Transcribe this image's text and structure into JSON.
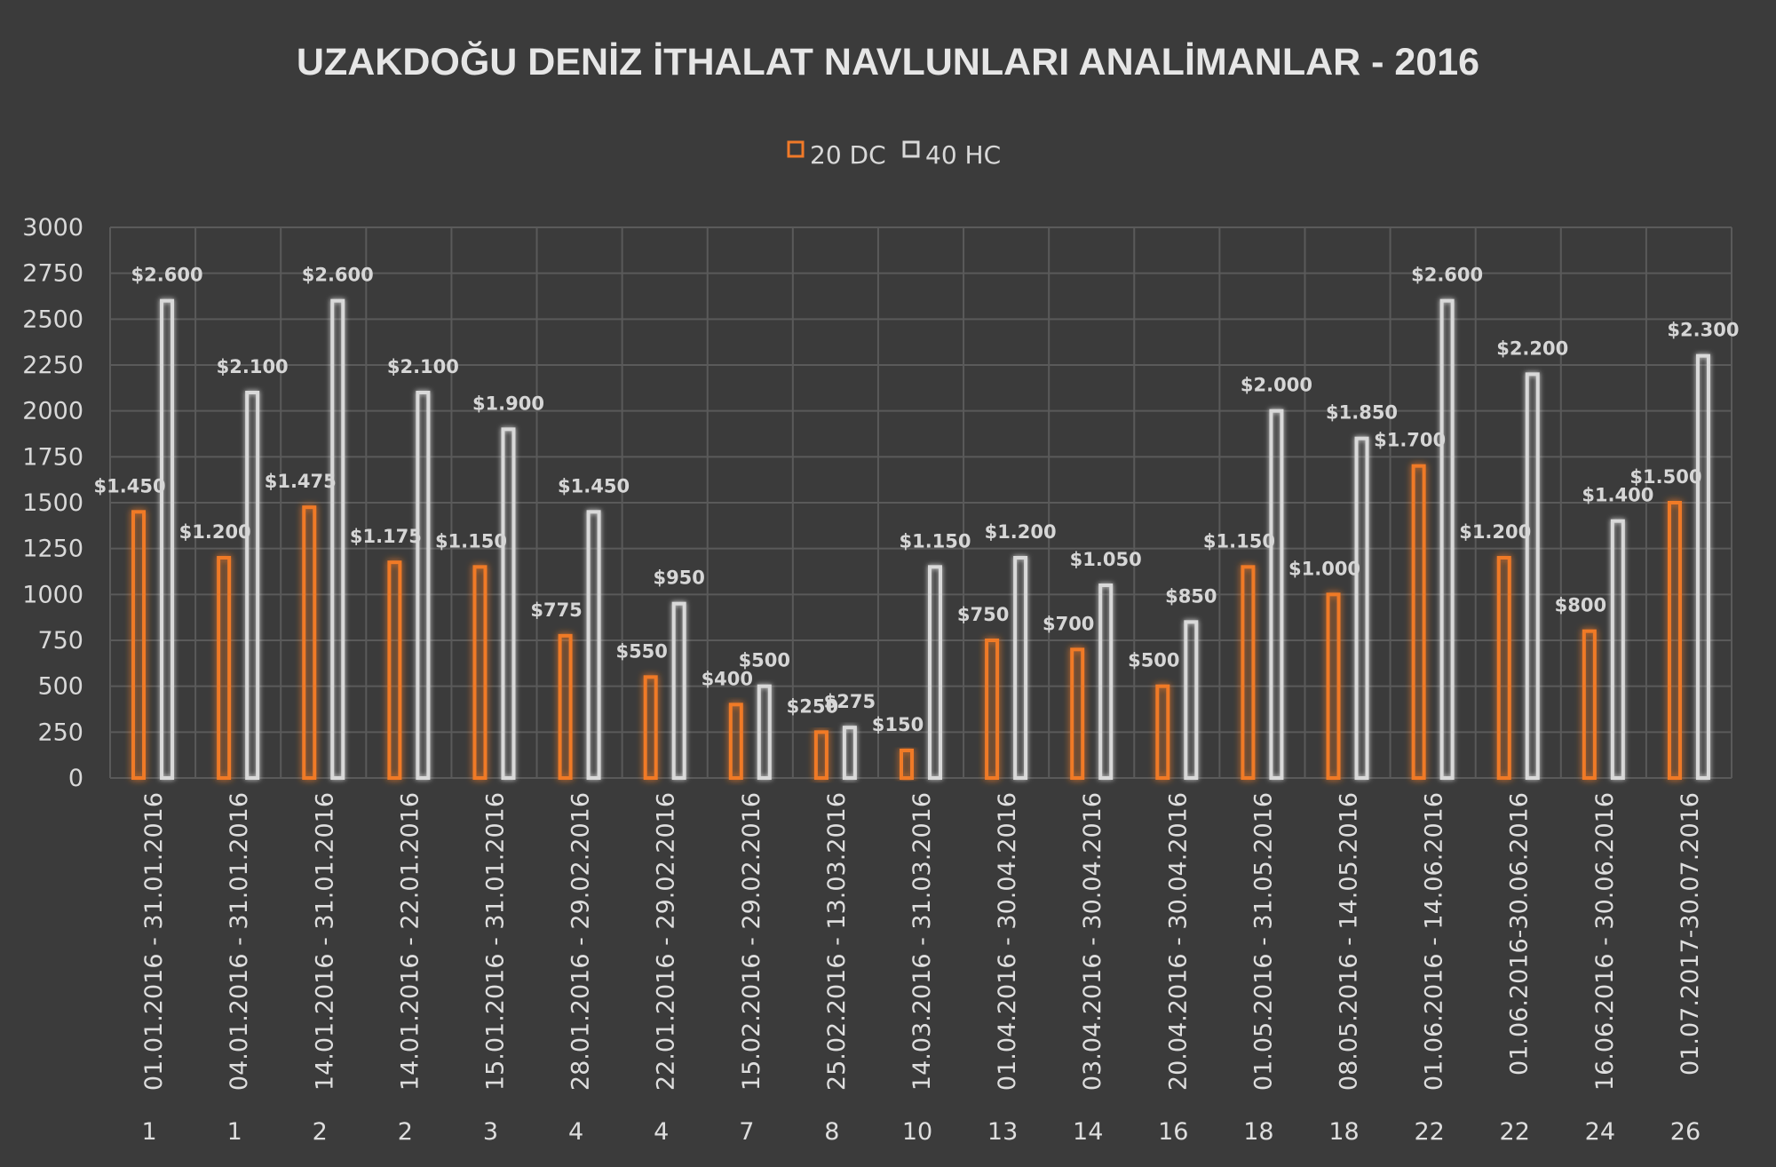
{
  "chart_data": {
    "type": "bar",
    "title": "UZAKDOĞU DENİZ İTHALAT NAVLUNLARI  ANALİMANLAR  - 2016",
    "legend_position": "top",
    "grid": true,
    "ylim": [
      0,
      3000
    ],
    "yticks": [
      "0",
      "250",
      "500",
      "750",
      "1000",
      "1250",
      "1500",
      "1750",
      "2000",
      "2250",
      "2500",
      "2750",
      "3000"
    ],
    "categories": [
      "01.01.2016 - 31.01.2016",
      "04.01.2016 - 31.01.2016",
      "14.01.2016 - 31.01.2016",
      "14.01.2016 - 22.01.2016",
      "15.01.2016 - 31.01.2016",
      "28.01.2016 - 29.02.2016",
      "22.01.2016 - 29.02.2016",
      "15.02.2016 - 29.02.2016",
      "25.02.2016 - 13.03.2016",
      "14.03.2016 - 31.03.2016",
      "01.04.2016 - 30.04.2016",
      "03.04.2016 - 30.04.2016",
      "20.04.2016 - 30.04.2016",
      "01.05.2016 - 31.05.2016",
      "08.05.2016 - 14.05.2016",
      "01.06.2016 - 14.06.2016",
      "01.06.2016-30.06.2016",
      "16.06.2016 - 30.06.2016",
      "01.07.2017-30.07.2016"
    ],
    "groups": [
      "1",
      "1",
      "2",
      "2",
      "3",
      "4",
      "4",
      "7",
      "8",
      "10",
      "13",
      "14",
      "16",
      "18",
      "18",
      "22",
      "22",
      "24",
      "26"
    ],
    "series": [
      {
        "name": "20 DC",
        "color": "#f07a28",
        "values": [
          1450,
          1200,
          1475,
          1175,
          1150,
          775,
          550,
          400,
          250,
          150,
          750,
          700,
          500,
          1150,
          1000,
          1700,
          1200,
          800,
          1500
        ],
        "labels": [
          "$1.450",
          "$1.200",
          "$1.475",
          "$1.175",
          "$1.150",
          "$775",
          "$550",
          "$400",
          "$250",
          "$150",
          "$750",
          "$700",
          "$500",
          "$1.150",
          "$1.000",
          "$1.700",
          "$1.200",
          "$800",
          "$1.500"
        ]
      },
      {
        "name": "40 HC",
        "color": "#d9d9d9",
        "values": [
          2600,
          2100,
          2600,
          2100,
          1900,
          1450,
          950,
          500,
          275,
          1150,
          1200,
          1050,
          850,
          2000,
          1850,
          2600,
          2200,
          1400,
          2300
        ],
        "labels": [
          "$2.600",
          "$2.100",
          "$2.600",
          "$2.100",
          "$1.900",
          "$1.450",
          "$950",
          "$500",
          "$275",
          "$1.150",
          "$1.200",
          "$1.050",
          "$850",
          "$2.000",
          "$1.850",
          "$2.600",
          "$2.200",
          "$1.400",
          "$2.300"
        ]
      }
    ]
  }
}
